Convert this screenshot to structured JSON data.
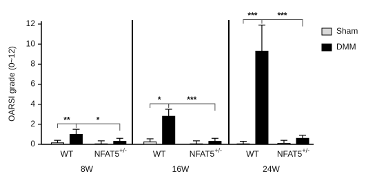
{
  "chart_data": [
    {
      "type": "bar",
      "ylabel": "OARSI grade  (0~12)",
      "xlabel": "8W",
      "ylim": [
        0,
        12
      ],
      "yticks": [
        0,
        2,
        4,
        6,
        8,
        10,
        12
      ],
      "categories": [
        "WT",
        "NFAT5"
      ],
      "category_superscripts": [
        null,
        "+/-"
      ],
      "series": [
        {
          "name": "Sham",
          "color": "#d9d9d9",
          "values": [
            0.15,
            0.05
          ],
          "errors": [
            0.25,
            0.3
          ]
        },
        {
          "name": "DMM",
          "color": "#000000",
          "values": [
            1.0,
            0.3
          ],
          "errors": [
            0.5,
            0.3
          ]
        }
      ],
      "annotations": [
        {
          "label": "**",
          "from": [
            0,
            0
          ],
          "to": [
            0,
            1
          ]
        },
        {
          "label": "*",
          "from": [
            0,
            1
          ],
          "to": [
            1,
            1
          ]
        }
      ]
    },
    {
      "type": "bar",
      "xlabel": "16W",
      "ylim": [
        0,
        12
      ],
      "categories": [
        "WT",
        "NFAT5"
      ],
      "category_superscripts": [
        null,
        "+/-"
      ],
      "series": [
        {
          "name": "Sham",
          "color": "#d9d9d9",
          "values": [
            0.25,
            0.05
          ],
          "errors": [
            0.3,
            0.3
          ]
        },
        {
          "name": "DMM",
          "color": "#000000",
          "values": [
            2.8,
            0.3
          ],
          "errors": [
            0.7,
            0.3
          ]
        }
      ],
      "annotations": [
        {
          "label": "*",
          "from": [
            0,
            0
          ],
          "to": [
            0,
            1
          ]
        },
        {
          "label": "***",
          "from": [
            0,
            1
          ],
          "to": [
            1,
            1
          ]
        }
      ]
    },
    {
      "type": "bar",
      "xlabel": "24W",
      "ylim": [
        0,
        12
      ],
      "categories": [
        "WT",
        "NFAT5"
      ],
      "category_superscripts": [
        null,
        "+/-"
      ],
      "series": [
        {
          "name": "Sham",
          "color": "#d9d9d9",
          "values": [
            0.05,
            0.1
          ],
          "errors": [
            0.25,
            0.3
          ]
        },
        {
          "name": "DMM",
          "color": "#000000",
          "values": [
            9.3,
            0.6
          ],
          "errors": [
            2.6,
            0.3
          ]
        }
      ],
      "annotations": [
        {
          "label": "***",
          "from": [
            0,
            0
          ],
          "to": [
            0,
            1
          ]
        },
        {
          "label": "***",
          "from": [
            0,
            1
          ],
          "to": [
            1,
            1
          ]
        }
      ]
    }
  ]
}
